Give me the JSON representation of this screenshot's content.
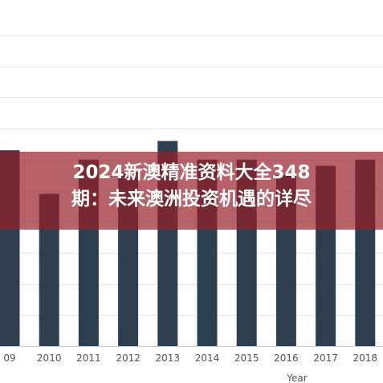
{
  "banner": {
    "line1": "2024新澳精准资料大全348",
    "line2": "期：未来澳洲投资机遇的详尽"
  },
  "chart_data": {
    "type": "bar",
    "categories": [
      "09",
      "2010",
      "2011",
      "2012",
      "2013",
      "2014",
      "2015",
      "2016",
      "2017",
      "2018"
    ],
    "values": [
      63,
      49,
      60,
      56,
      66,
      60,
      60,
      55,
      58,
      60
    ],
    "title": "",
    "xlabel": "Year",
    "ylabel": "",
    "ylim": [
      0,
      100
    ],
    "grid": true,
    "bar_color": "#2d3e4e"
  }
}
